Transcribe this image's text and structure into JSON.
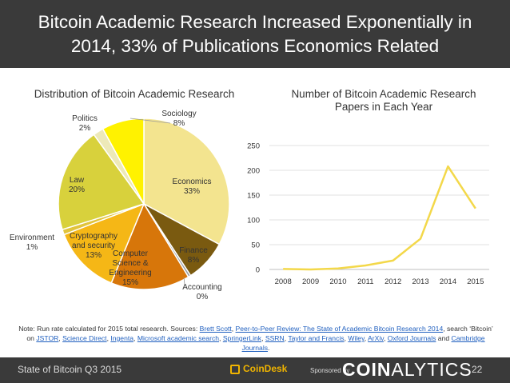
{
  "header": {
    "title_line1": "Bitcoin Academic Research Increased Exponentially in",
    "title_line2": "2014, 33% of Publications Economics Related"
  },
  "chart_data": [
    {
      "type": "pie",
      "title": "Distribution of Bitcoin Academic Research",
      "slices": [
        {
          "label": "Economics",
          "pct": "33%",
          "value": 33,
          "color": "#f3e48f"
        },
        {
          "label": "Finance",
          "pct": "8%",
          "value": 8,
          "color": "#7a5a10"
        },
        {
          "label": "Accounting",
          "pct": "0%",
          "value": 0.5,
          "color": "#9aa0a6"
        },
        {
          "label": "Computer Science & Engineering",
          "pct": "15%",
          "value": 15,
          "color": "#d7760a"
        },
        {
          "label": "Cryptography and security",
          "pct": "13%",
          "value": 13,
          "color": "#f5b716"
        },
        {
          "label": "Environment",
          "pct": "1%",
          "value": 1,
          "color": "#e1c43c"
        },
        {
          "label": "Law",
          "pct": "20%",
          "value": 20,
          "color": "#d8d13c"
        },
        {
          "label": "Politics",
          "pct": "2%",
          "value": 2,
          "color": "#ede9b8"
        },
        {
          "label": "Sociology",
          "pct": "8%",
          "value": 8,
          "color": "#fff200"
        }
      ]
    },
    {
      "type": "line",
      "title": "Number of Bitcoin Academic Research Papers in Each Year",
      "x": [
        "2008",
        "2009",
        "2010",
        "2011",
        "2012",
        "2013",
        "2014",
        "2015"
      ],
      "series": [
        {
          "values": [
            1,
            0,
            2,
            8,
            18,
            62,
            208,
            123
          ],
          "color": "#f3d84a"
        }
      ],
      "ylim": [
        0,
        250
      ],
      "yticks": [
        "0",
        "50",
        "100",
        "150",
        "200",
        "250"
      ],
      "grid": true
    }
  ],
  "note": {
    "prefix": "Note: Run rate calculated for 2015 total research. Sources:",
    "links": [
      "Brett Scott",
      "Peer-to-Peer Review: The State of Academic Bitcoin Research 2014",
      "JSTOR",
      "Science Direct",
      "Ingenta",
      "Microsoft academic search",
      "SpringerLink",
      "SSRN",
      "Taylor and Francis",
      "Wiley",
      "ArXiv",
      "Oxford Journals",
      "Cambridge Journals"
    ],
    "search_text": ", search ‘Bitcoin’ on"
  },
  "footer": {
    "left_text": "State of Bitcoin Q3 2015",
    "coindesk": "CoinDesk",
    "sponsored": "Sponsored by",
    "brand_bold": "COIN",
    "brand_light": "ALYTICS",
    "page": "22"
  }
}
